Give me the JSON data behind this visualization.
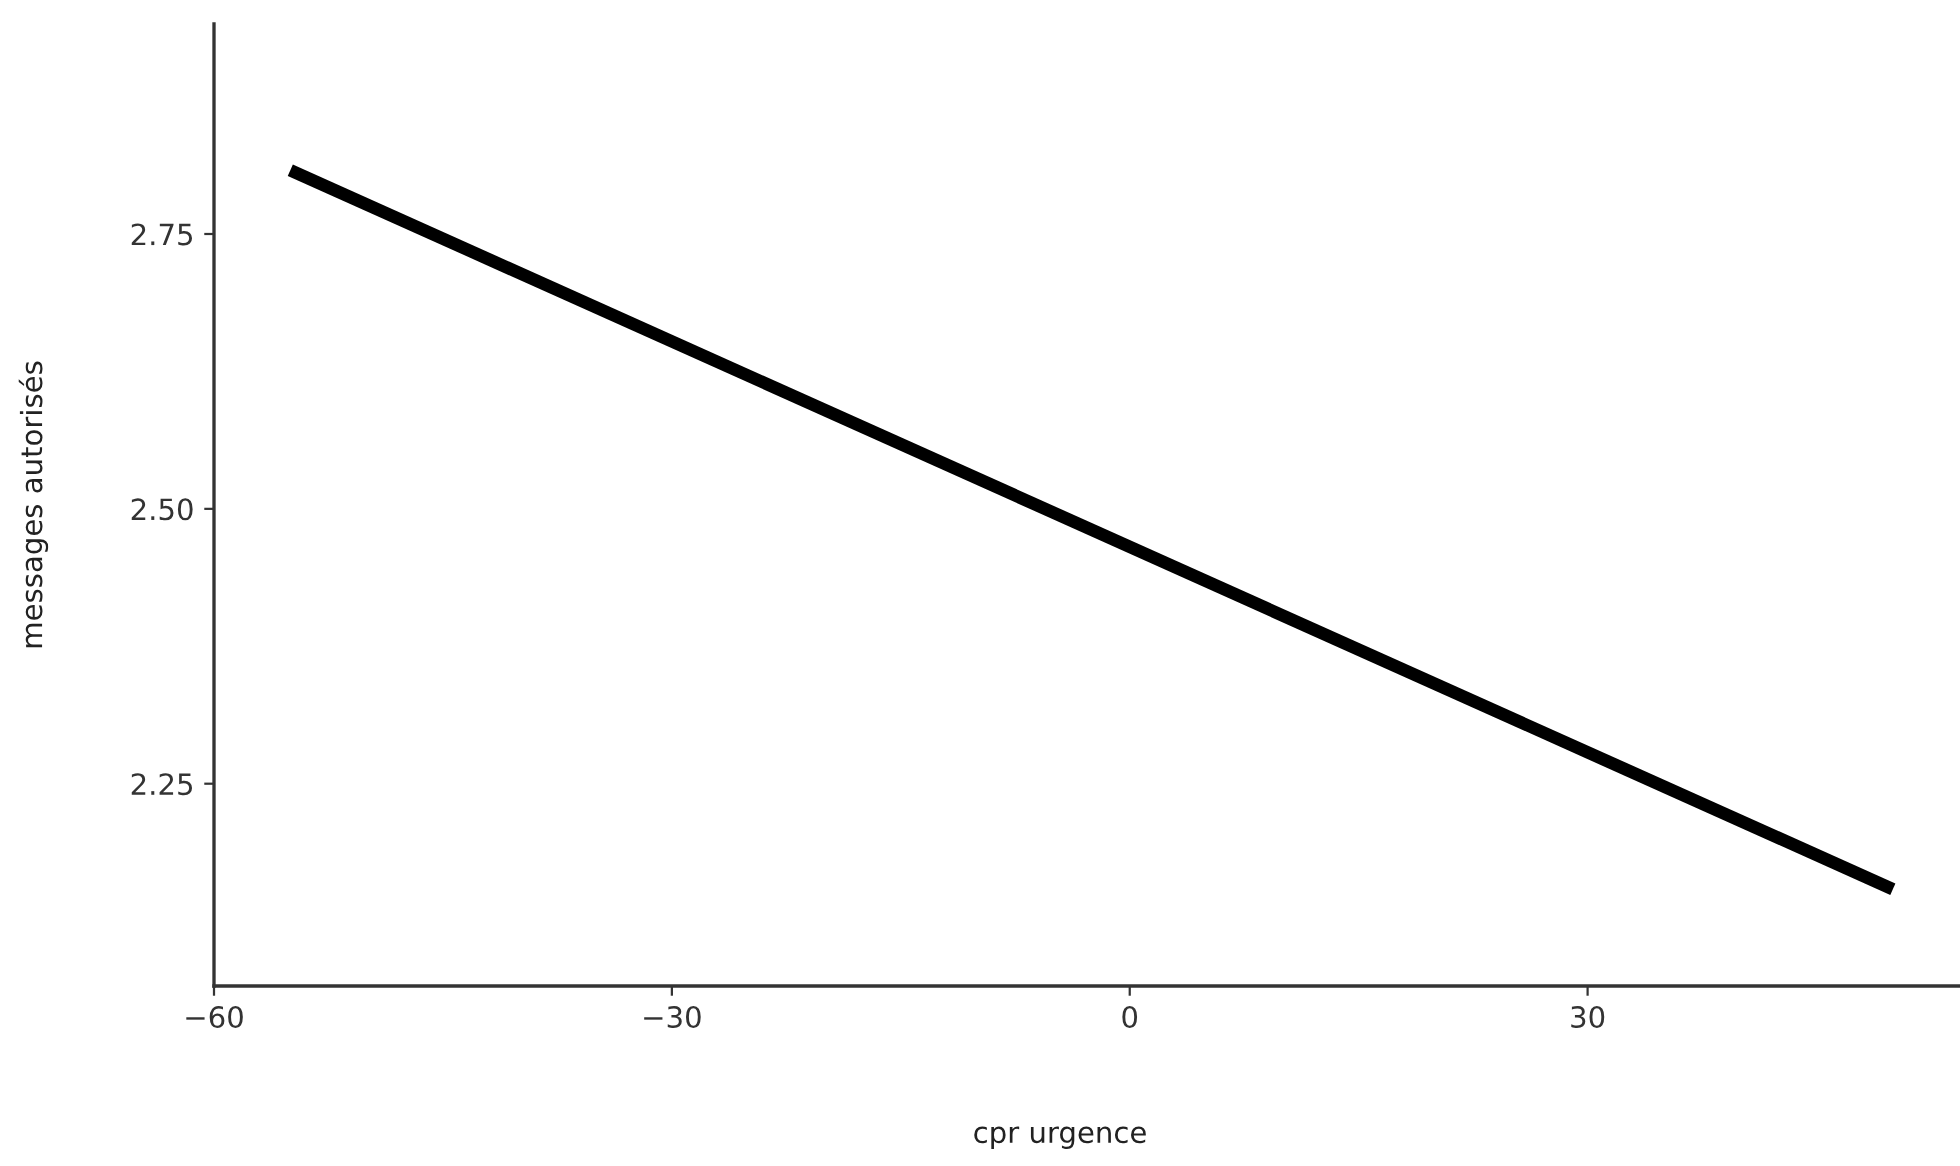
{
  "chart_data": {
    "type": "line",
    "xlabel": "cpr urgence",
    "ylabel": "messages autorisés",
    "x": [
      -55,
      50
    ],
    "series": [
      {
        "color": "#000000",
        "values": [
          2.808,
          2.154
        ]
      }
    ],
    "xlim": [
      -60,
      54.4
    ],
    "ylim": [
      2.066,
      2.941
    ],
    "xticks": [
      {
        "value": -60,
        "label": "−60"
      },
      {
        "value": -30,
        "label": "−30"
      },
      0,
      30
    ],
    "yticks": [
      2.25,
      {
        "value": 2.5,
        "label": "2.50"
      },
      2.75
    ],
    "grid": false,
    "marker": "none",
    "line_style": "solid"
  }
}
